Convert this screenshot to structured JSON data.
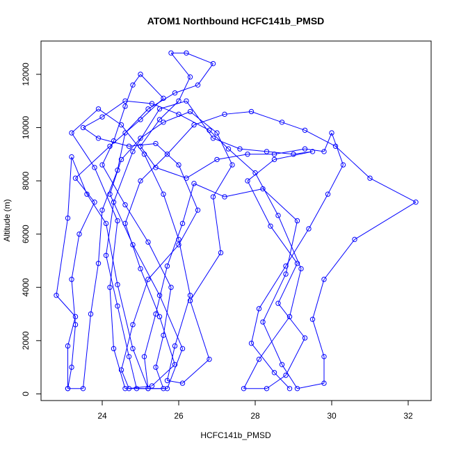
{
  "chart_data": {
    "type": "scatter",
    "title": "ATOM1 Northbound HCFC141b_PMSD",
    "xlabel": "HCFC141b_PMSD",
    "ylabel": "Altitude (m)",
    "xlim": [
      22.4,
      32.6
    ],
    "ylim": [
      -250,
      13250
    ],
    "xticks": [
      24,
      26,
      28,
      30,
      32
    ],
    "yticks": [
      0,
      2000,
      4000,
      6000,
      8000,
      10000,
      12000
    ],
    "point_style": "open-circle",
    "connected": true,
    "series_color": "#0000ff",
    "series": [
      {
        "points": [
          [
            23.1,
            200
          ],
          [
            23.2,
            1000
          ],
          [
            23.3,
            2600
          ],
          [
            23.2,
            4300
          ],
          [
            23.4,
            6000
          ],
          [
            23.8,
            7200
          ],
          [
            23.3,
            8100
          ],
          [
            24.2,
            9300
          ],
          [
            25.0,
            10300
          ],
          [
            25.6,
            11100
          ],
          [
            25.0,
            12000
          ],
          [
            24.8,
            11600
          ],
          [
            24.6,
            10800
          ],
          [
            24.3,
            9500
          ],
          [
            24.0,
            8600
          ],
          [
            24.6,
            7100
          ],
          [
            25.2,
            5700
          ],
          [
            25.8,
            4000
          ],
          [
            25.6,
            2200
          ],
          [
            25.4,
            1000
          ],
          [
            25.6,
            200
          ],
          [
            24.9,
            200
          ],
          [
            24.7,
            1400
          ],
          [
            24.4,
            3300
          ],
          [
            24.1,
            5200
          ],
          [
            24.3,
            7200
          ],
          [
            24.8,
            9100
          ],
          [
            25.5,
            10700
          ],
          [
            26.2,
            11000
          ],
          [
            26.9,
            9600
          ],
          [
            27.6,
            9200
          ],
          [
            28.3,
            9100
          ],
          [
            29.0,
            9000
          ],
          [
            29.5,
            9100
          ],
          [
            28.5,
            8800
          ],
          [
            27.8,
            8000
          ],
          [
            28.4,
            6300
          ],
          [
            29.1,
            4900
          ],
          [
            28.6,
            3400
          ],
          [
            29.3,
            2100
          ],
          [
            28.8,
            700
          ],
          [
            28.3,
            200
          ],
          [
            27.7,
            200
          ],
          [
            28.1,
            1300
          ],
          [
            28.9,
            2900
          ],
          [
            29.2,
            4700
          ],
          [
            28.6,
            6700
          ],
          [
            28.0,
            8300
          ],
          [
            27.3,
            9200
          ],
          [
            26.8,
            9900
          ],
          [
            26.0,
            10500
          ],
          [
            25.3,
            10900
          ],
          [
            24.6,
            11000
          ],
          [
            24.0,
            10400
          ],
          [
            23.5,
            10000
          ],
          [
            23.9,
            9600
          ],
          [
            24.7,
            9300
          ],
          [
            25.4,
            9400
          ],
          [
            26.0,
            8600
          ],
          [
            26.5,
            6900
          ],
          [
            26.0,
            5600
          ],
          [
            25.2,
            4300
          ],
          [
            24.8,
            2600
          ],
          [
            24.5,
            900
          ],
          [
            24.7,
            200
          ],
          [
            25.3,
            300
          ],
          [
            25.9,
            1100
          ],
          [
            25.5,
            2900
          ],
          [
            25.0,
            4700
          ],
          [
            24.6,
            6400
          ],
          [
            25.0,
            8000
          ],
          [
            25.7,
            9000
          ],
          [
            26.4,
            10100
          ],
          [
            27.2,
            10500
          ],
          [
            27.9,
            10600
          ],
          [
            28.7,
            10200
          ],
          [
            29.3,
            9900
          ],
          [
            30.1,
            9300
          ],
          [
            31.0,
            8100
          ],
          [
            32.2,
            7200
          ],
          [
            30.6,
            5800
          ],
          [
            29.8,
            4300
          ],
          [
            29.5,
            2800
          ],
          [
            29.8,
            1400
          ],
          [
            29.8,
            400
          ],
          [
            29.1,
            200
          ],
          [
            28.7,
            1100
          ],
          [
            28.2,
            2700
          ],
          [
            28.8,
            4500
          ],
          [
            29.1,
            6500
          ],
          [
            28.2,
            7700
          ],
          [
            27.2,
            7400
          ],
          [
            26.4,
            7900
          ],
          [
            26.1,
            6400
          ],
          [
            25.7,
            4800
          ],
          [
            25.4,
            3000
          ],
          [
            25.1,
            1400
          ],
          [
            25.2,
            200
          ],
          [
            24.6,
            200
          ],
          [
            24.3,
            1700
          ],
          [
            24.2,
            4000
          ],
          [
            24.4,
            6500
          ],
          [
            23.8,
            8500
          ],
          [
            23.2,
            9800
          ],
          [
            23.9,
            10700
          ],
          [
            24.5,
            10100
          ],
          [
            25.1,
            9000
          ],
          [
            25.6,
            7500
          ],
          [
            26.0,
            5800
          ],
          [
            26.3,
            3700
          ],
          [
            25.9,
            1800
          ],
          [
            25.7,
            500
          ],
          [
            26.1,
            400
          ],
          [
            26.8,
            1300
          ],
          [
            26.3,
            3500
          ],
          [
            27.1,
            5300
          ],
          [
            26.9,
            7400
          ],
          [
            27.4,
            8600
          ],
          [
            27.0,
            9800
          ],
          [
            26.3,
            10600
          ],
          [
            25.6,
            10200
          ],
          [
            25.0,
            9600
          ],
          [
            24.5,
            8800
          ],
          [
            24.2,
            7500
          ],
          [
            24.8,
            5600
          ],
          [
            25.5,
            3700
          ],
          [
            26.1,
            1700
          ],
          [
            25.7,
            200
          ],
          [
            25.2,
            200
          ],
          [
            24.8,
            1700
          ],
          [
            24.4,
            4100
          ],
          [
            24.1,
            6400
          ],
          [
            23.6,
            7500
          ],
          [
            23.2,
            8900
          ],
          [
            23.1,
            6600
          ],
          [
            22.8,
            3700
          ],
          [
            23.3,
            2900
          ],
          [
            23.1,
            1800
          ],
          [
            23.1,
            200
          ],
          [
            23.5,
            200
          ],
          [
            23.7,
            3000
          ],
          [
            23.9,
            4900
          ],
          [
            24.0,
            6900
          ],
          [
            24.4,
            8400
          ],
          [
            24.6,
            9800
          ],
          [
            25.2,
            10700
          ],
          [
            25.9,
            11300
          ],
          [
            26.5,
            11600
          ],
          [
            26.9,
            12400
          ],
          [
            26.2,
            12800
          ],
          [
            25.8,
            12800
          ],
          [
            26.3,
            11900
          ],
          [
            26.0,
            11000
          ],
          [
            25.5,
            10300
          ],
          [
            25.0,
            9300
          ],
          [
            25.4,
            8500
          ],
          [
            26.2,
            8100
          ],
          [
            27.0,
            8800
          ],
          [
            27.8,
            9000
          ],
          [
            28.5,
            9000
          ],
          [
            29.3,
            9200
          ],
          [
            29.8,
            9100
          ],
          [
            30.0,
            9800
          ],
          [
            30.3,
            8600
          ],
          [
            29.9,
            7500
          ],
          [
            29.4,
            6200
          ],
          [
            28.8,
            4800
          ],
          [
            28.1,
            3200
          ],
          [
            27.9,
            1900
          ],
          [
            28.5,
            800
          ],
          [
            28.9,
            200
          ]
        ]
      }
    ]
  }
}
